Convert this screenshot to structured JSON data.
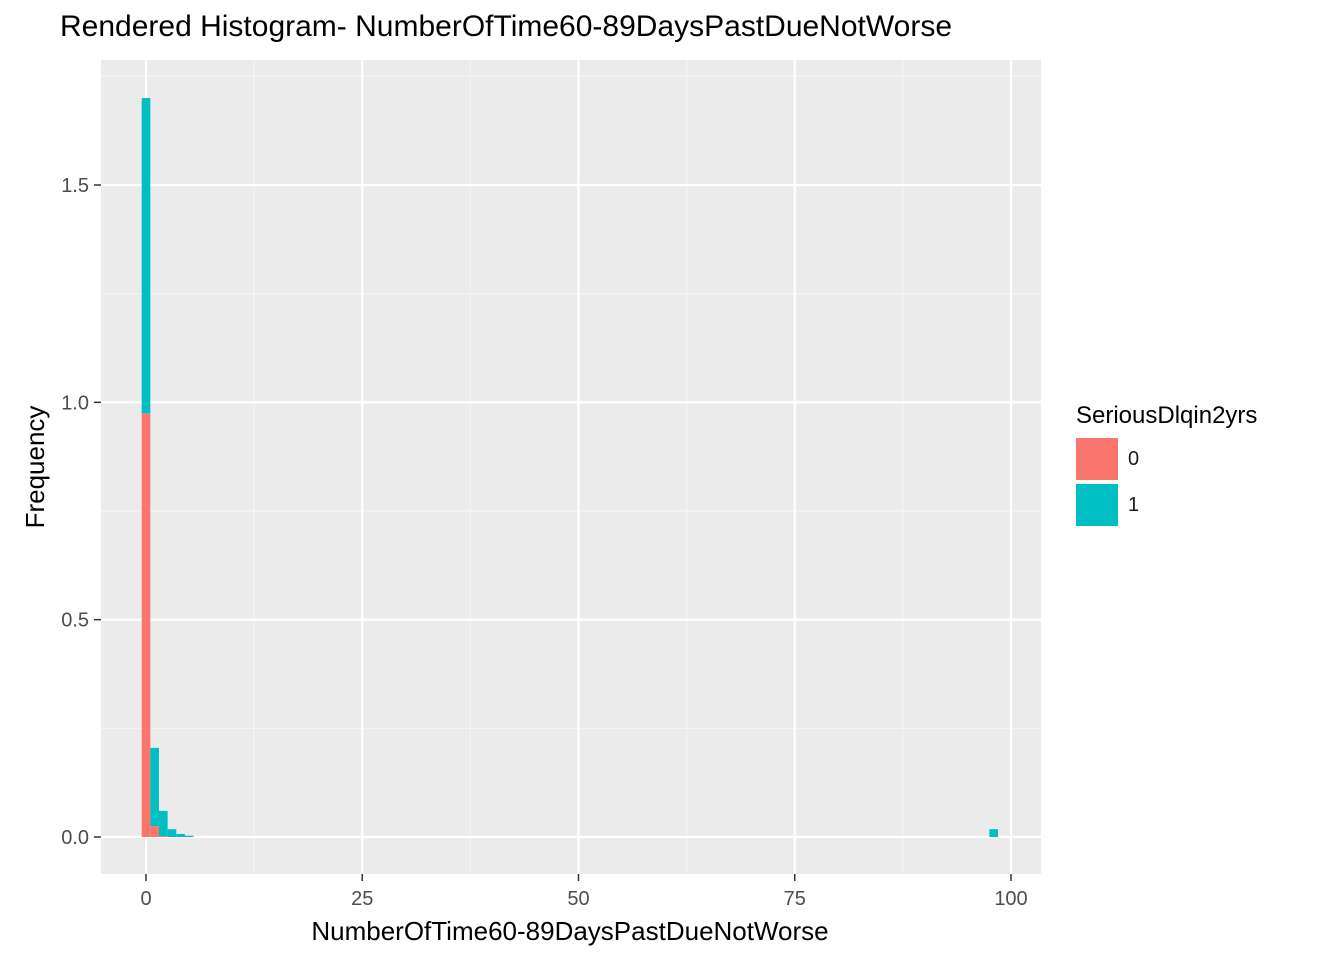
{
  "chart_data": {
    "type": "bar",
    "title": "Rendered Histogram- NumberOfTime60-89DaysPastDueNotWorse",
    "xlabel": "NumberOfTime60-89DaysPastDueNotWorse",
    "ylabel": "Frequency",
    "xlim": [
      -10,
      103
    ],
    "ylim": [
      -0.08,
      1.8
    ],
    "x_ticks": [
      0,
      25,
      50,
      75,
      100
    ],
    "y_ticks": [
      0.0,
      0.5,
      1.0,
      1.5
    ],
    "x_tick_labels": [
      "0",
      "25",
      "50",
      "75",
      "100"
    ],
    "y_tick_labels": [
      "0.0",
      "0.5",
      "1.0",
      "1.5"
    ],
    "bin_width": 1,
    "stacked": true,
    "grid": true,
    "legend": {
      "title": "SeriousDlqin2yrs",
      "position": "right",
      "entries": [
        {
          "label": "0",
          "color": "#F8766D"
        },
        {
          "label": "1",
          "color": "#00BFC4"
        }
      ]
    },
    "series": [
      {
        "name": "0",
        "color": "#F8766D",
        "bins": [
          {
            "x": 0,
            "value": 0.975
          },
          {
            "x": 1,
            "value": 0.025
          },
          {
            "x": 2,
            "value": 0.002
          }
        ]
      },
      {
        "name": "1",
        "color": "#00BFC4",
        "bins": [
          {
            "x": 0,
            "value": 0.725
          },
          {
            "x": 1,
            "value": 0.18
          },
          {
            "x": 2,
            "value": 0.058
          },
          {
            "x": 3,
            "value": 0.018
          },
          {
            "x": 4,
            "value": 0.007
          },
          {
            "x": 5,
            "value": 0.003
          },
          {
            "x": 98,
            "value": 0.018
          }
        ]
      }
    ]
  }
}
